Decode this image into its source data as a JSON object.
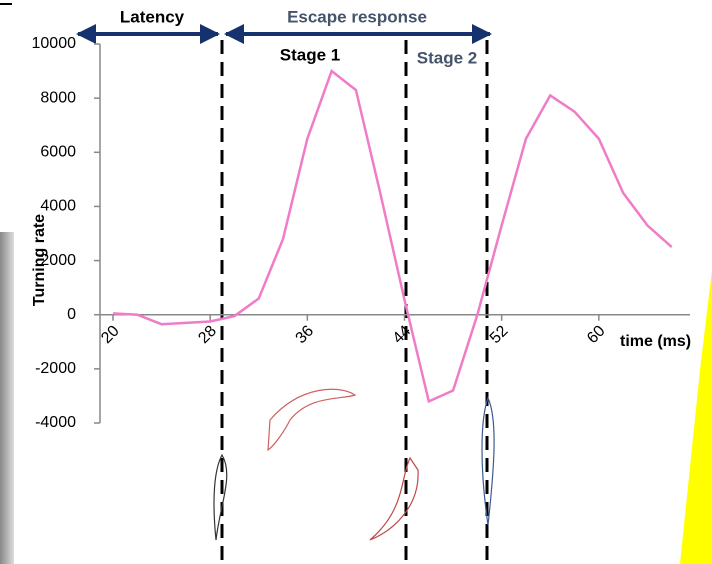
{
  "chart_data": {
    "type": "line",
    "ylabel": "Turning rate",
    "xlabel": "time (ms)",
    "annotations": [
      "Latency",
      "Escape response",
      "Stage 1",
      "Stage 2"
    ],
    "x": [
      20,
      22,
      24,
      26,
      28,
      30,
      32,
      34,
      36,
      38,
      40,
      42,
      44,
      46,
      48,
      50,
      52,
      54,
      56,
      58,
      60,
      62,
      64,
      66
    ],
    "series": [
      {
        "name": "Turning rate",
        "color": "#f07cc8",
        "values": [
          50,
          0,
          -350,
          -300,
          -250,
          -50,
          600,
          2800,
          6500,
          9000,
          8300,
          4500,
          550,
          -3200,
          -2800,
          0,
          3300,
          6500,
          8100,
          7500,
          6500,
          4500,
          3300,
          2500
        ]
      }
    ],
    "xlim": [
      20,
      68
    ],
    "xticks": [
      20,
      28,
      36,
      44,
      52,
      60
    ],
    "ylim": [
      -4000,
      10000
    ],
    "yticks": [
      -4000,
      -2000,
      0,
      2000,
      4000,
      6000,
      8000,
      10000
    ]
  }
}
